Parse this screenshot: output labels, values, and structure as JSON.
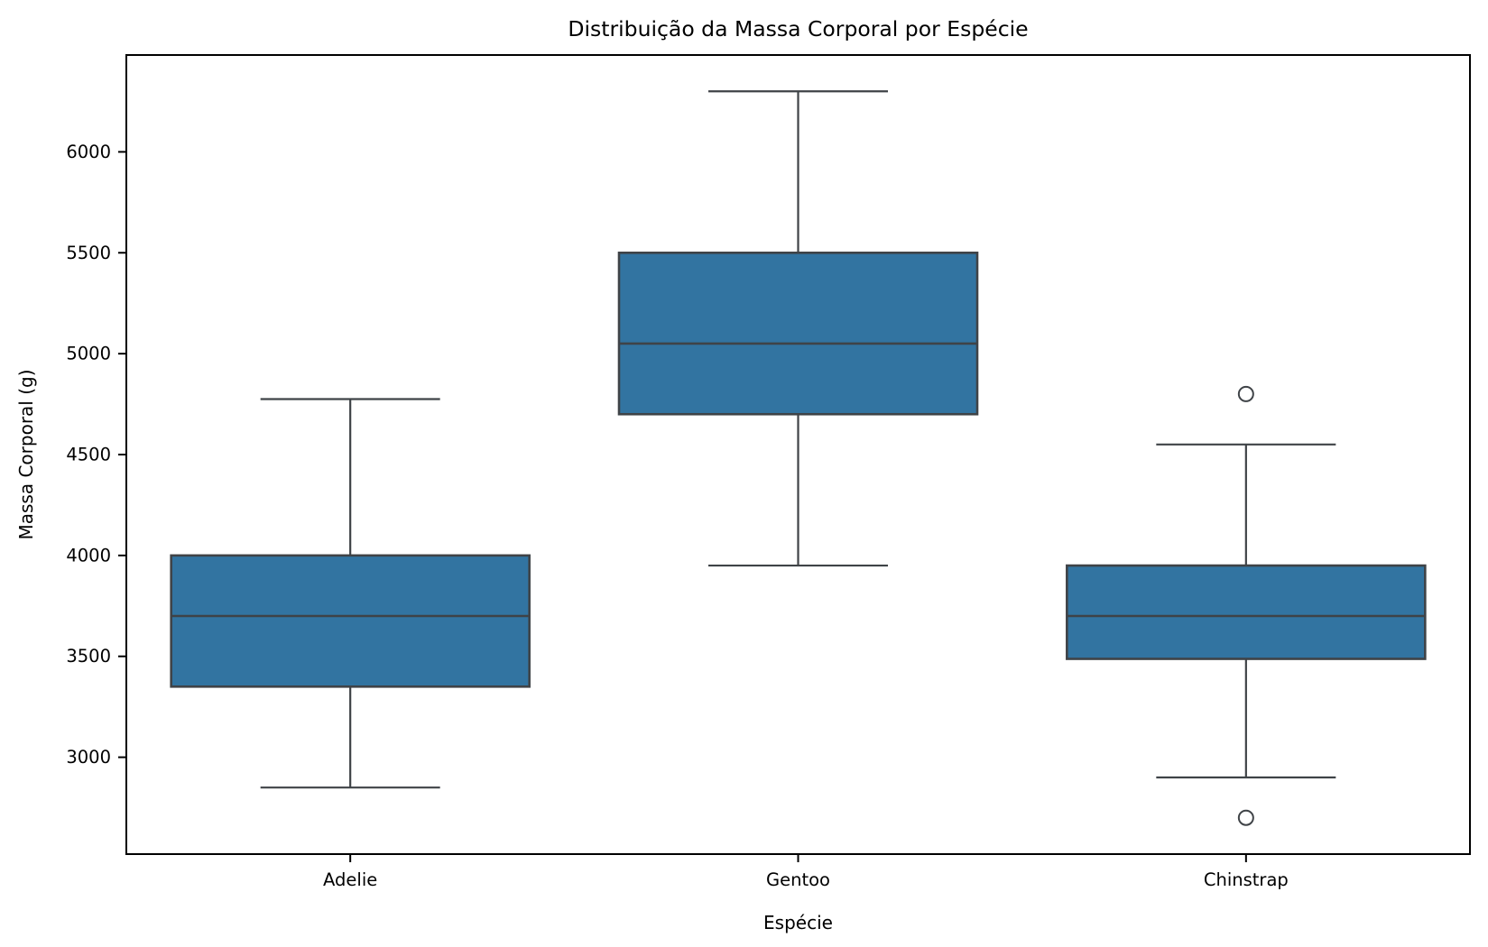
{
  "chart_data": {
    "type": "box",
    "title": "Distribuição da Massa Corporal por Espécie",
    "xlabel": "Espécie",
    "ylabel": "Massa Corporal (g)",
    "categories": [
      "Adelie",
      "Gentoo",
      "Chinstrap"
    ],
    "series": [
      {
        "name": "Adelie",
        "whisker_low": 2850,
        "q1": 3350,
        "median": 3700,
        "q3": 4000,
        "whisker_high": 4775,
        "outliers": []
      },
      {
        "name": "Gentoo",
        "whisker_low": 3950,
        "q1": 4700,
        "median": 5050,
        "q3": 5500,
        "whisker_high": 6300,
        "outliers": []
      },
      {
        "name": "Chinstrap",
        "whisker_low": 2900,
        "q1": 3487.5,
        "median": 3700,
        "q3": 3950,
        "whisker_high": 4550,
        "outliers": [
          2700,
          4800
        ]
      }
    ],
    "yticks": [
      3000,
      3500,
      4000,
      4500,
      5000,
      5500,
      6000
    ],
    "ylim": [
      2520,
      6480
    ],
    "grid": false,
    "legend": null,
    "colors": {
      "box_fill": "#3274A1",
      "line": "#3F4347",
      "axis": "#000000",
      "background": "#FFFFFF"
    }
  }
}
